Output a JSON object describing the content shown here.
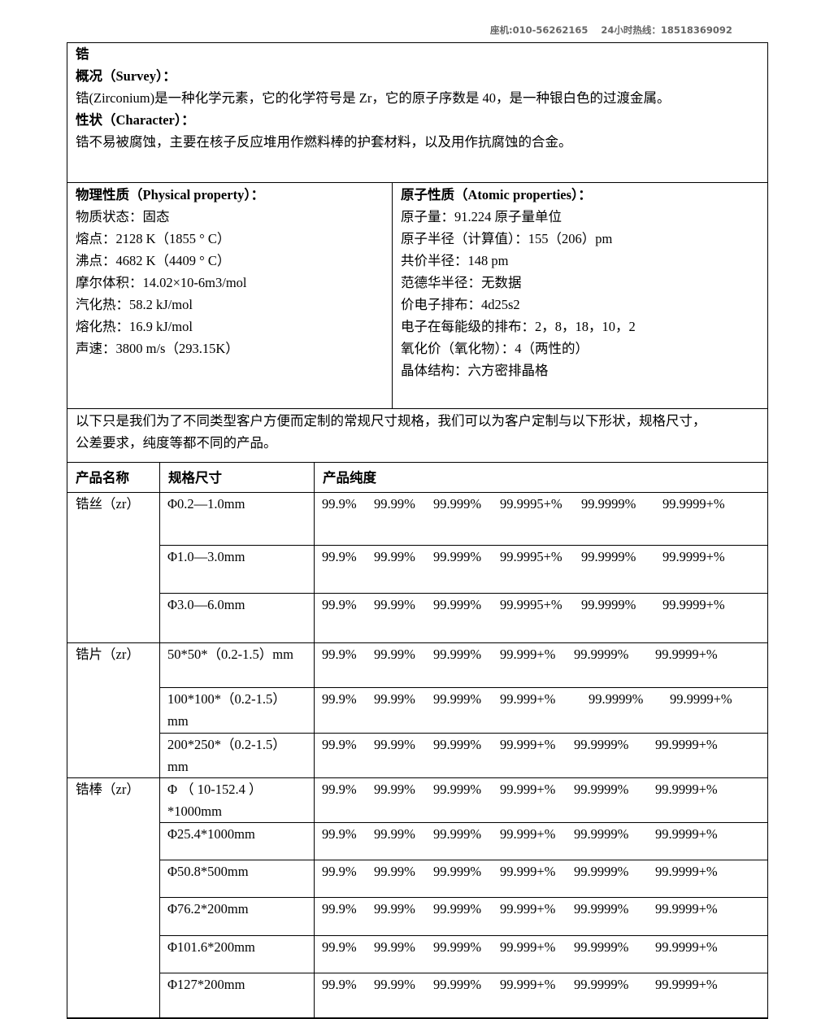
{
  "header": {
    "phone_label": "座机:010-56262165",
    "hotline_label": "24小时热线：18518369092"
  },
  "overview": {
    "title": "锆",
    "survey_heading": "概况（Survey）：",
    "survey_text": "锆(Zirconium)是一种化学元素，它的化学符号是 Zr，它的原子序数是 40，是一种银白色的过渡金属。",
    "character_heading": "性状（Character）：",
    "character_text": "锆不易被腐蚀，主要在核子反应堆用作燃料棒的护套材料，以及用作抗腐蚀的合金。"
  },
  "physical": {
    "heading": "物理性质（Physical property）：",
    "items": [
      "物质状态：固态",
      "熔点：2128 K（1855 ° C）",
      "沸点：4682 K（4409 ° C）",
      "摩尔体积：14.02×10-6m3/mol",
      "汽化热：58.2 kJ/mol",
      "熔化热：16.9 kJ/mol",
      "声速：3800 m/s（293.15K）"
    ]
  },
  "atomic": {
    "heading": "原子性质（Atomic properties）：",
    "items": [
      "原子量：91.224 原子量单位",
      "原子半径（计算值）：155（206）pm",
      "共价半径：148 pm",
      "范德华半径：无数据",
      "价电子排布：4d25s2",
      "电子在每能级的排布：2，8，18，10，2",
      "氧化价（氧化物）：4（两性的）",
      "晶体结构：六方密排晶格"
    ]
  },
  "notice": {
    "lines": [
      "以下只是我们为了不同类型客户方便而定制的常规尺寸规格，我们可以为客户定制与以下形状，规格尺寸，",
      "公差要求，纯度等都不同的产品。"
    ]
  },
  "table": {
    "headers": [
      "产品名称",
      "规格尺寸",
      "产品纯度"
    ],
    "groups": [
      {
        "name": "锆丝（zr）",
        "rows": [
          {
            "size": [
              "Φ0.2—1.0mm"
            ],
            "purity": [
              "99.9%",
              "99.99%",
              "99.999%",
              "99.9995+%",
              "99.9999%",
              "99.9999+%"
            ]
          },
          {
            "size": [
              "Φ1.0—3.0mm"
            ],
            "purity": [
              "99.9%",
              "99.99%",
              "99.999%",
              "99.9995+%",
              "99.9999%",
              "99.9999+%"
            ]
          },
          {
            "size": [
              "Φ3.0—6.0mm"
            ],
            "purity": [
              "99.9%",
              "99.99%",
              "99.999%",
              "99.9995+%",
              "99.9999%",
              "99.9999+%"
            ]
          }
        ]
      },
      {
        "name": "锆片（zr）",
        "rows": [
          {
            "size": [
              "50*50*（0.2-1.5）mm"
            ],
            "purity": [
              "99.9%",
              "99.99%",
              "99.999%",
              "99.999+%",
              "99.9999%",
              "99.9999+%"
            ]
          },
          {
            "size": [
              "100*100*（0.2-1.5）",
              "mm"
            ],
            "purity": [
              "99.9%",
              "99.99%",
              "99.999%",
              "99.999+%",
              "99.9999%",
              "99.9999+%"
            ]
          },
          {
            "size": [
              "200*250*（0.2-1.5）",
              "mm"
            ],
            "purity": [
              "99.9%",
              "99.99%",
              "99.999%",
              "99.999+%",
              "99.9999%",
              "99.9999+%"
            ]
          }
        ]
      },
      {
        "name": "锆棒（zr）",
        "rows": [
          {
            "size": [
              "Φ （ 10-152.4 ）",
              "*1000mm"
            ],
            "purity": [
              "99.9%",
              "99.99%",
              "99.999%",
              "99.999+%",
              "99.9999%",
              "99.9999+%"
            ]
          },
          {
            "size": [
              "Φ25.4*1000mm"
            ],
            "purity": [
              "99.9%",
              "99.99%",
              "99.999%",
              "99.999+%",
              "99.9999%",
              "99.9999+%"
            ]
          },
          {
            "size": [
              "Φ50.8*500mm"
            ],
            "purity": [
              "99.9%",
              "99.99%",
              "99.999%",
              "99.999+%",
              "99.9999%",
              "99.9999+%"
            ]
          },
          {
            "size": [
              "Φ76.2*200mm"
            ],
            "purity": [
              "99.9%",
              "99.99%",
              "99.999%",
              "99.999+%",
              "99.9999%",
              "99.9999+%"
            ]
          },
          {
            "size": [
              "Φ101.6*200mm"
            ],
            "purity": [
              "99.9%",
              "99.99%",
              "99.999%",
              "99.999+%",
              "99.9999%",
              "99.9999+%"
            ]
          },
          {
            "size": [
              "Φ127*200mm"
            ],
            "purity": [
              "99.9%",
              "99.99%",
              "99.999%",
              "99.999+%",
              "99.9999%",
              "99.9999+%"
            ]
          }
        ]
      }
    ]
  }
}
